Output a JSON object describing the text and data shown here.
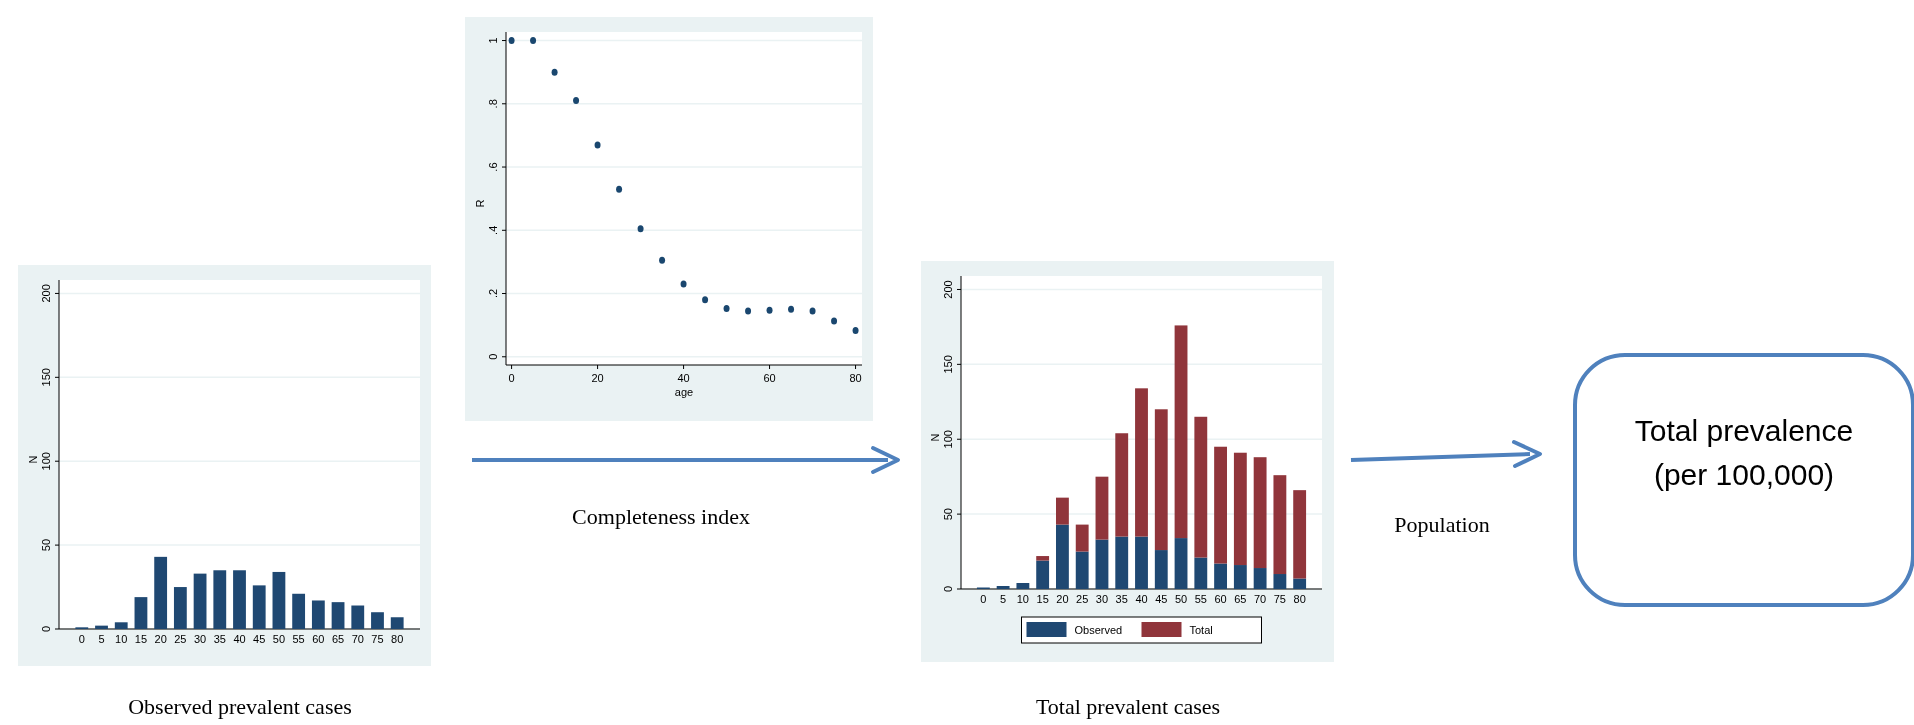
{
  "chart_data": [
    {
      "type": "bar",
      "title": "Observed prevalent cases",
      "ylabel": "N",
      "categories": [
        "0",
        "5",
        "10",
        "15",
        "20",
        "25",
        "30",
        "35",
        "40",
        "45",
        "50",
        "55",
        "60",
        "65",
        "70",
        "75",
        "80"
      ],
      "values": [
        1,
        2,
        4,
        19,
        43,
        25,
        33,
        35,
        35,
        26,
        34,
        21,
        17,
        16,
        14,
        10,
        7
      ],
      "color": "#1f4872",
      "ylim": [
        0,
        208
      ],
      "yticks": [
        0,
        50,
        100,
        150,
        200
      ],
      "grid": "y"
    },
    {
      "type": "scatter",
      "title": "Completeness index",
      "xlabel": "age",
      "ylabel": "R",
      "x": [
        0,
        5,
        10,
        15,
        20,
        25,
        30,
        35,
        40,
        45,
        50,
        55,
        60,
        65,
        70,
        75,
        80
      ],
      "values": [
        1,
        1,
        0.9,
        0.81,
        0.67,
        0.53,
        0.405,
        0.305,
        0.23,
        0.18,
        0.153,
        0.145,
        0.147,
        0.15,
        0.145,
        0.113,
        0.083
      ],
      "color": "#1a476f",
      "marker": "circle",
      "xlim": [
        -1.3,
        81.5
      ],
      "xticks": [
        0,
        20,
        40,
        60,
        80
      ],
      "ylim": [
        -0.026,
        1.027
      ],
      "yticks": [
        {
          "value": 0,
          "label": "0"
        },
        {
          "value": 0.2,
          "label": ".2"
        },
        {
          "value": 0.4,
          "label": ".4"
        },
        {
          "value": 0.6,
          "label": ".6"
        },
        {
          "value": 0.8,
          "label": ".8"
        },
        {
          "value": 1,
          "label": "1"
        }
      ],
      "grid": "y"
    },
    {
      "type": "bar",
      "title": "Total prevalent cases",
      "ylabel": "N",
      "stacked": true,
      "categories": [
        "0",
        "5",
        "10",
        "15",
        "20",
        "25",
        "30",
        "35",
        "40",
        "45",
        "50",
        "55",
        "60",
        "65",
        "70",
        "75",
        "80"
      ],
      "series": [
        {
          "name": "Observed",
          "color": "#1f4872",
          "values": [
            1,
            2,
            4,
            19,
            43,
            25,
            33,
            35,
            35,
            26,
            34,
            21,
            17,
            16,
            14,
            10,
            7
          ]
        },
        {
          "name": "Total",
          "color": "#90353b",
          "values": [
            0,
            0,
            0,
            3,
            18,
            18,
            42,
            69,
            99,
            94,
            142,
            94,
            78,
            75,
            74,
            66,
            59
          ]
        }
      ],
      "ylim": [
        0,
        209
      ],
      "yticks": [
        0,
        50,
        100,
        150,
        200
      ],
      "grid": "y",
      "legend": "bottom"
    },
    {
      "type": "other",
      "title": "Total prevalence (per 100,000)",
      "annotations": [
        "Population"
      ]
    }
  ]
}
